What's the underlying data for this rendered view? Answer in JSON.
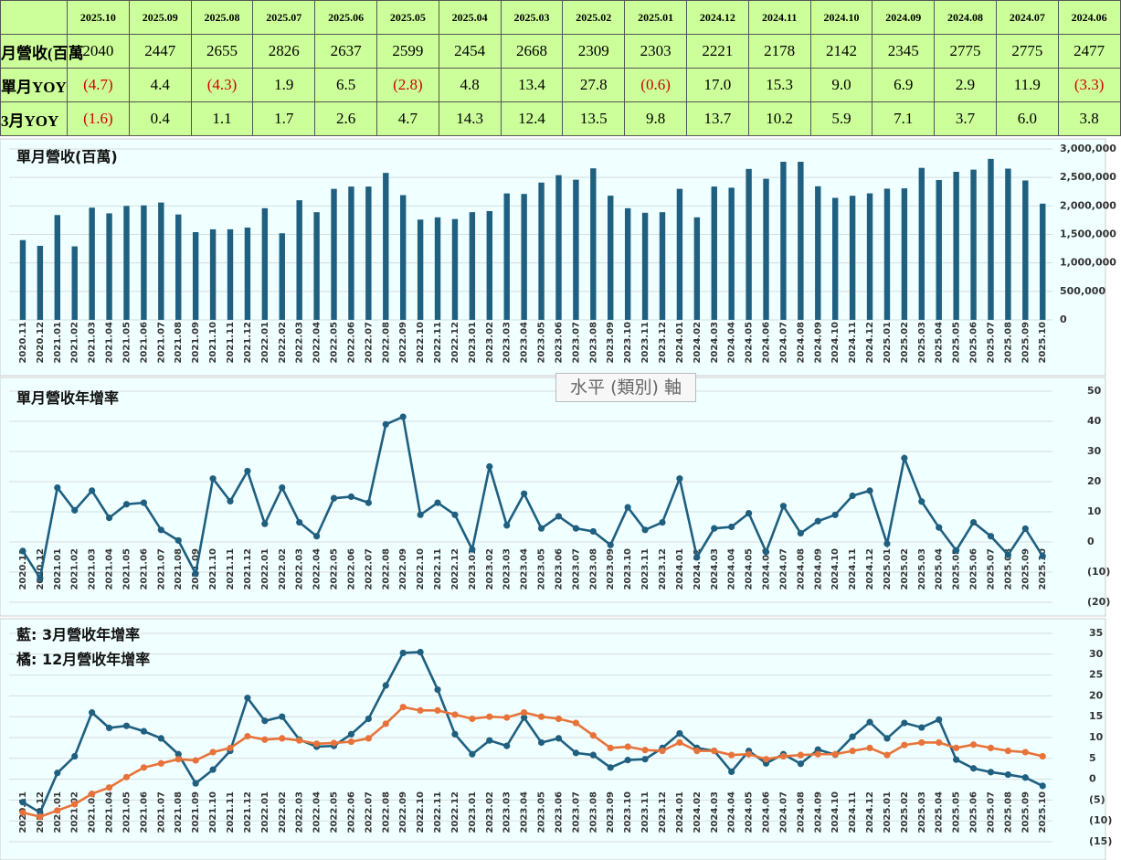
{
  "table": {
    "header": [
      "2025.10",
      "2025.09",
      "2025.08",
      "2025.07",
      "2025.06",
      "2025.05",
      "2025.04",
      "2025.03",
      "2025.02",
      "2025.01",
      "2024.12",
      "2024.11",
      "2024.10",
      "2024.09",
      "2024.08",
      "2024.07",
      "2024.06"
    ],
    "rows": [
      {
        "label": "月營收(百萬",
        "values": [
          "2040",
          "2447",
          "2655",
          "2826",
          "2637",
          "2599",
          "2454",
          "2668",
          "2309",
          "2303",
          "2221",
          "2178",
          "2142",
          "2345",
          "2775",
          "2775",
          "2477"
        ]
      },
      {
        "label": "單月YOY",
        "values": [
          "(4.7)",
          "4.4",
          "(4.3)",
          "1.9",
          "6.5",
          "(2.8)",
          "4.8",
          "13.4",
          "27.8",
          "(0.6)",
          "17.0",
          "15.3",
          "9.0",
          "6.9",
          "2.9",
          "11.9",
          "(3.3)"
        ]
      },
      {
        "label": "3月YOY",
        "values": [
          "(1.6)",
          "0.4",
          "1.1",
          "1.7",
          "2.6",
          "4.7",
          "14.3",
          "12.4",
          "13.5",
          "9.8",
          "13.7",
          "10.2",
          "5.9",
          "7.1",
          "3.7",
          "6.0",
          "3.8"
        ]
      }
    ]
  },
  "tooltip": "水平 (類別) 軸",
  "chart_data": [
    {
      "type": "bar",
      "title": "單月營收(百萬)",
      "color": "#1f5f80",
      "grid": true,
      "categories": [
        "2020.11",
        "2020.12",
        "2021.01",
        "2021.02",
        "2021.03",
        "2021.04",
        "2021.05",
        "2021.06",
        "2021.07",
        "2021.08",
        "2021.09",
        "2021.10",
        "2021.11",
        "2021.12",
        "2022.01",
        "2022.02",
        "2022.03",
        "2022.04",
        "2022.05",
        "2022.06",
        "2022.07",
        "2022.08",
        "2022.09",
        "2022.10",
        "2022.11",
        "2022.12",
        "2023.01",
        "2023.02",
        "2023.03",
        "2023.04",
        "2023.05",
        "2023.06",
        "2023.07",
        "2023.08",
        "2023.09",
        "2023.10",
        "2023.11",
        "2023.12",
        "2024.01",
        "2024.02",
        "2024.03",
        "2024.04",
        "2024.05",
        "2024.06",
        "2024.07",
        "2024.08",
        "2024.09",
        "2024.10",
        "2024.11",
        "2024.12",
        "2025.01",
        "2025.02",
        "2025.03",
        "2025.04",
        "2025.05",
        "2025.06",
        "2025.07",
        "2025.08",
        "2025.09",
        "2025.10"
      ],
      "values": [
        1400000,
        1300000,
        1840000,
        1290000,
        1970000,
        1870000,
        2000000,
        2010000,
        2060000,
        1850000,
        1540000,
        1590000,
        1590000,
        1620000,
        1960000,
        1520000,
        2100000,
        1890000,
        2300000,
        2340000,
        2340000,
        2580000,
        2190000,
        1760000,
        1800000,
        1770000,
        1890000,
        1910000,
        2220000,
        2210000,
        2410000,
        2540000,
        2460000,
        2660000,
        2180000,
        1960000,
        1880000,
        1890000,
        2300000,
        1800000,
        2340000,
        2320000,
        2650000,
        2477000,
        2775000,
        2775000,
        2345000,
        2142000,
        2178000,
        2221000,
        2303000,
        2309000,
        2668000,
        2454000,
        2599000,
        2637000,
        2826000,
        2655000,
        2447000,
        2040000
      ],
      "ylim": [
        0,
        3000000
      ],
      "yticks": [
        0,
        {
          "value": 500000,
          "label": "500,000"
        },
        {
          "value": 1000000,
          "label": "1,000,000"
        },
        {
          "value": 1500000,
          "label": "1,500,000"
        },
        {
          "value": 2000000,
          "label": "2,000,000"
        },
        {
          "value": 2500000,
          "label": "2,500,000"
        },
        {
          "value": 3000000,
          "label": "3,000,000"
        }
      ]
    },
    {
      "type": "line",
      "title": "單月營收年增率",
      "color": "#1f5f80",
      "grid": true,
      "categories": [
        "2020.11",
        "2020.12",
        "2021.01",
        "2021.02",
        "2021.03",
        "2021.04",
        "2021.05",
        "2021.06",
        "2021.07",
        "2021.08",
        "2021.09",
        "2021.10",
        "2021.11",
        "2021.12",
        "2022.01",
        "2022.02",
        "2022.03",
        "2022.04",
        "2022.05",
        "2022.06",
        "2022.07",
        "2022.08",
        "2022.09",
        "2022.10",
        "2022.11",
        "2022.12",
        "2023.01",
        "2023.02",
        "2023.03",
        "2023.04",
        "2023.05",
        "2023.06",
        "2023.07",
        "2023.08",
        "2023.09",
        "2023.10",
        "2023.11",
        "2023.12",
        "2024.01",
        "2024.02",
        "2024.03",
        "2024.04",
        "2024.05",
        "2024.06",
        "2024.07",
        "2024.08",
        "2024.09",
        "2024.10",
        "2024.11",
        "2024.12",
        "2025.01",
        "2025.02",
        "2025.03",
        "2025.04",
        "2025.05",
        "2025.06",
        "2025.07",
        "2025.08",
        "2025.09",
        "2025.10"
      ],
      "values": [
        -3,
        -12,
        18,
        10.5,
        17,
        8,
        12.5,
        13,
        4,
        0.5,
        -10.5,
        21,
        13.5,
        23.5,
        6,
        18,
        6.5,
        1.9,
        14.5,
        15,
        13,
        39,
        41.5,
        9,
        13,
        9,
        -2.5,
        25,
        5.5,
        16,
        4.5,
        8.5,
        4.5,
        3.5,
        -1,
        11.5,
        4,
        6.5,
        21,
        -5,
        4.5,
        5,
        9.5,
        -3.3,
        11.9,
        2.9,
        6.9,
        9.0,
        15.3,
        17.0,
        -0.6,
        27.8,
        13.4,
        4.8,
        -2.8,
        6.5,
        1.9,
        -4.3,
        4.4,
        -4.7
      ],
      "ylim": [
        -20,
        50
      ],
      "yticks": [
        {
          "value": -20,
          "label": "(20)"
        },
        {
          "value": -10,
          "label": "(10)"
        },
        0,
        10,
        20,
        30,
        40,
        50
      ]
    },
    {
      "type": "line",
      "grid": true,
      "categories": [
        "2020.11",
        "2020.12",
        "2021.01",
        "2021.02",
        "2021.03",
        "2021.04",
        "2021.05",
        "2021.06",
        "2021.07",
        "2021.08",
        "2021.09",
        "2021.10",
        "2021.11",
        "2021.12",
        "2022.01",
        "2022.02",
        "2022.03",
        "2022.04",
        "2022.05",
        "2022.06",
        "2022.07",
        "2022.08",
        "2022.09",
        "2022.10",
        "2022.11",
        "2022.12",
        "2023.01",
        "2023.02",
        "2023.03",
        "2023.04",
        "2023.05",
        "2023.06",
        "2023.07",
        "2023.08",
        "2023.09",
        "2023.10",
        "2023.11",
        "2023.12",
        "2024.01",
        "2024.02",
        "2024.03",
        "2024.04",
        "2024.05",
        "2024.06",
        "2024.07",
        "2024.08",
        "2024.09",
        "2024.10",
        "2024.11",
        "2024.12",
        "2025.01",
        "2025.02",
        "2025.03",
        "2025.04",
        "2025.05",
        "2025.06",
        "2025.07",
        "2025.08",
        "2025.09",
        "2025.10"
      ],
      "series": [
        {
          "name": "藍: 3月營收年增率",
          "color": "#1f5f80",
          "values": [
            -5.5,
            -8,
            1.5,
            5.5,
            16,
            12.3,
            12.8,
            11.5,
            9.8,
            6,
            -1,
            2.3,
            6.8,
            19.5,
            14,
            15,
            9.5,
            7.8,
            8,
            10.8,
            14.5,
            22.5,
            30.3,
            30.5,
            21.5,
            10.8,
            6,
            9.3,
            8,
            14.8,
            8.8,
            9.8,
            6.3,
            5.8,
            2.8,
            4.6,
            4.8,
            7.5,
            11,
            7.5,
            6.8,
            1.8,
            6.8,
            3.8,
            6.0,
            3.7,
            7.1,
            5.9,
            10.2,
            13.7,
            9.8,
            13.5,
            12.4,
            14.3,
            4.7,
            2.6,
            1.7,
            1.1,
            0.4,
            -1.6
          ]
        },
        {
          "name": "橘: 12月營收年增率",
          "color": "#e8733a",
          "values": [
            -8,
            -9,
            -7.5,
            -6,
            -3.5,
            -2,
            0.5,
            2.8,
            3.8,
            4.8,
            4.5,
            6.5,
            7.5,
            10.3,
            9.5,
            9.8,
            9.3,
            8.5,
            8.7,
            9,
            9.8,
            13.3,
            17.3,
            16.5,
            16.5,
            15.5,
            14.5,
            15,
            14.8,
            16,
            15,
            14.5,
            13.5,
            10.5,
            7.5,
            7.8,
            7,
            6.8,
            8.8,
            6.8,
            6.8,
            5.8,
            6,
            4.8,
            5.5,
            5.8,
            6,
            6,
            6.8,
            7.5,
            5.8,
            8.2,
            8.8,
            8.8,
            7.5,
            8.3,
            7.5,
            6.8,
            6.5,
            5.5
          ]
        }
      ],
      "ylim": [
        -15,
        35
      ],
      "yticks": [
        {
          "value": -15,
          "label": "(15)"
        },
        {
          "value": -10,
          "label": "(10)"
        },
        {
          "value": -5,
          "label": "(5)"
        },
        0,
        5,
        10,
        15,
        20,
        25,
        30,
        35
      ]
    }
  ]
}
